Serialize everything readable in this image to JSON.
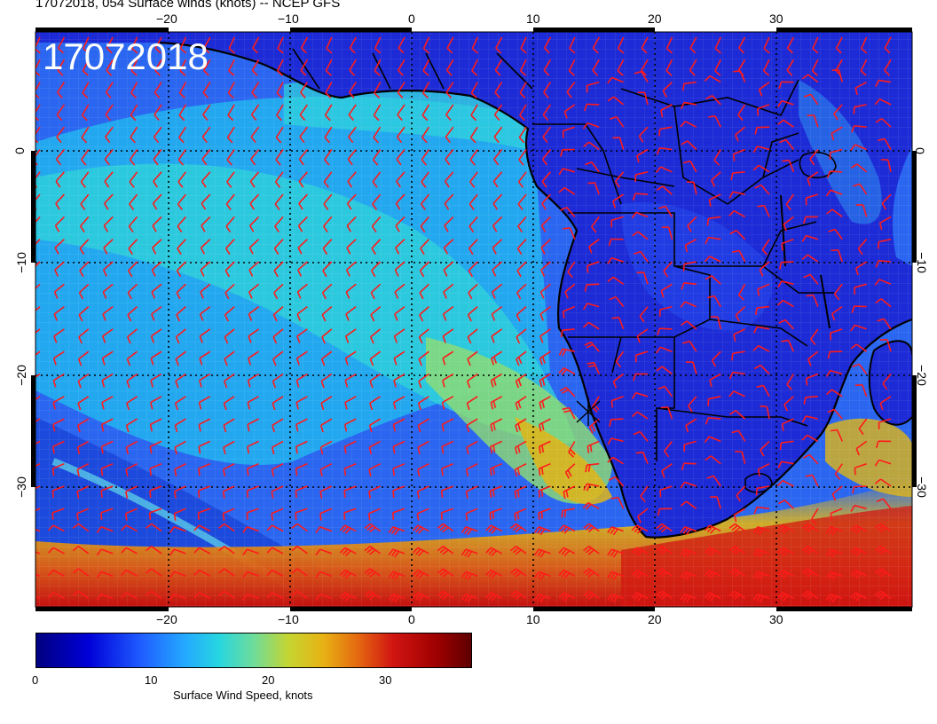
{
  "header": {
    "title": "17072018, 054 Surface winds (knots) -- NCEP GFS"
  },
  "map": {
    "date_overlay": "17072018",
    "lon_ticks_top": [
      "−20",
      "−10",
      "0",
      "10",
      "20",
      "30"
    ],
    "lon_ticks_bottom": [
      "−20",
      "−10",
      "0",
      "10",
      "20",
      "30"
    ],
    "lat_ticks_left": [
      "0",
      "−10",
      "−20",
      "−30"
    ],
    "lat_ticks_right": [
      "0",
      "−10",
      "−20",
      "−30"
    ],
    "land_color": "#1c2bd6",
    "ocean_base_color": "#2a66f0",
    "barb_color": "#ff1a1a",
    "coast_color": "#000000"
  },
  "colorbar": {
    "tick_labels": [
      "0",
      "10",
      "20",
      "30"
    ],
    "title": "Surface Wind Speed, knots",
    "stops": [
      "#00007f",
      "#0000d8",
      "#1f5cff",
      "#24a8ff",
      "#27d6e0",
      "#6fdc9a",
      "#c5d531",
      "#e8b214",
      "#e46810",
      "#d11512",
      "#9f0000",
      "#5e0000"
    ]
  }
}
